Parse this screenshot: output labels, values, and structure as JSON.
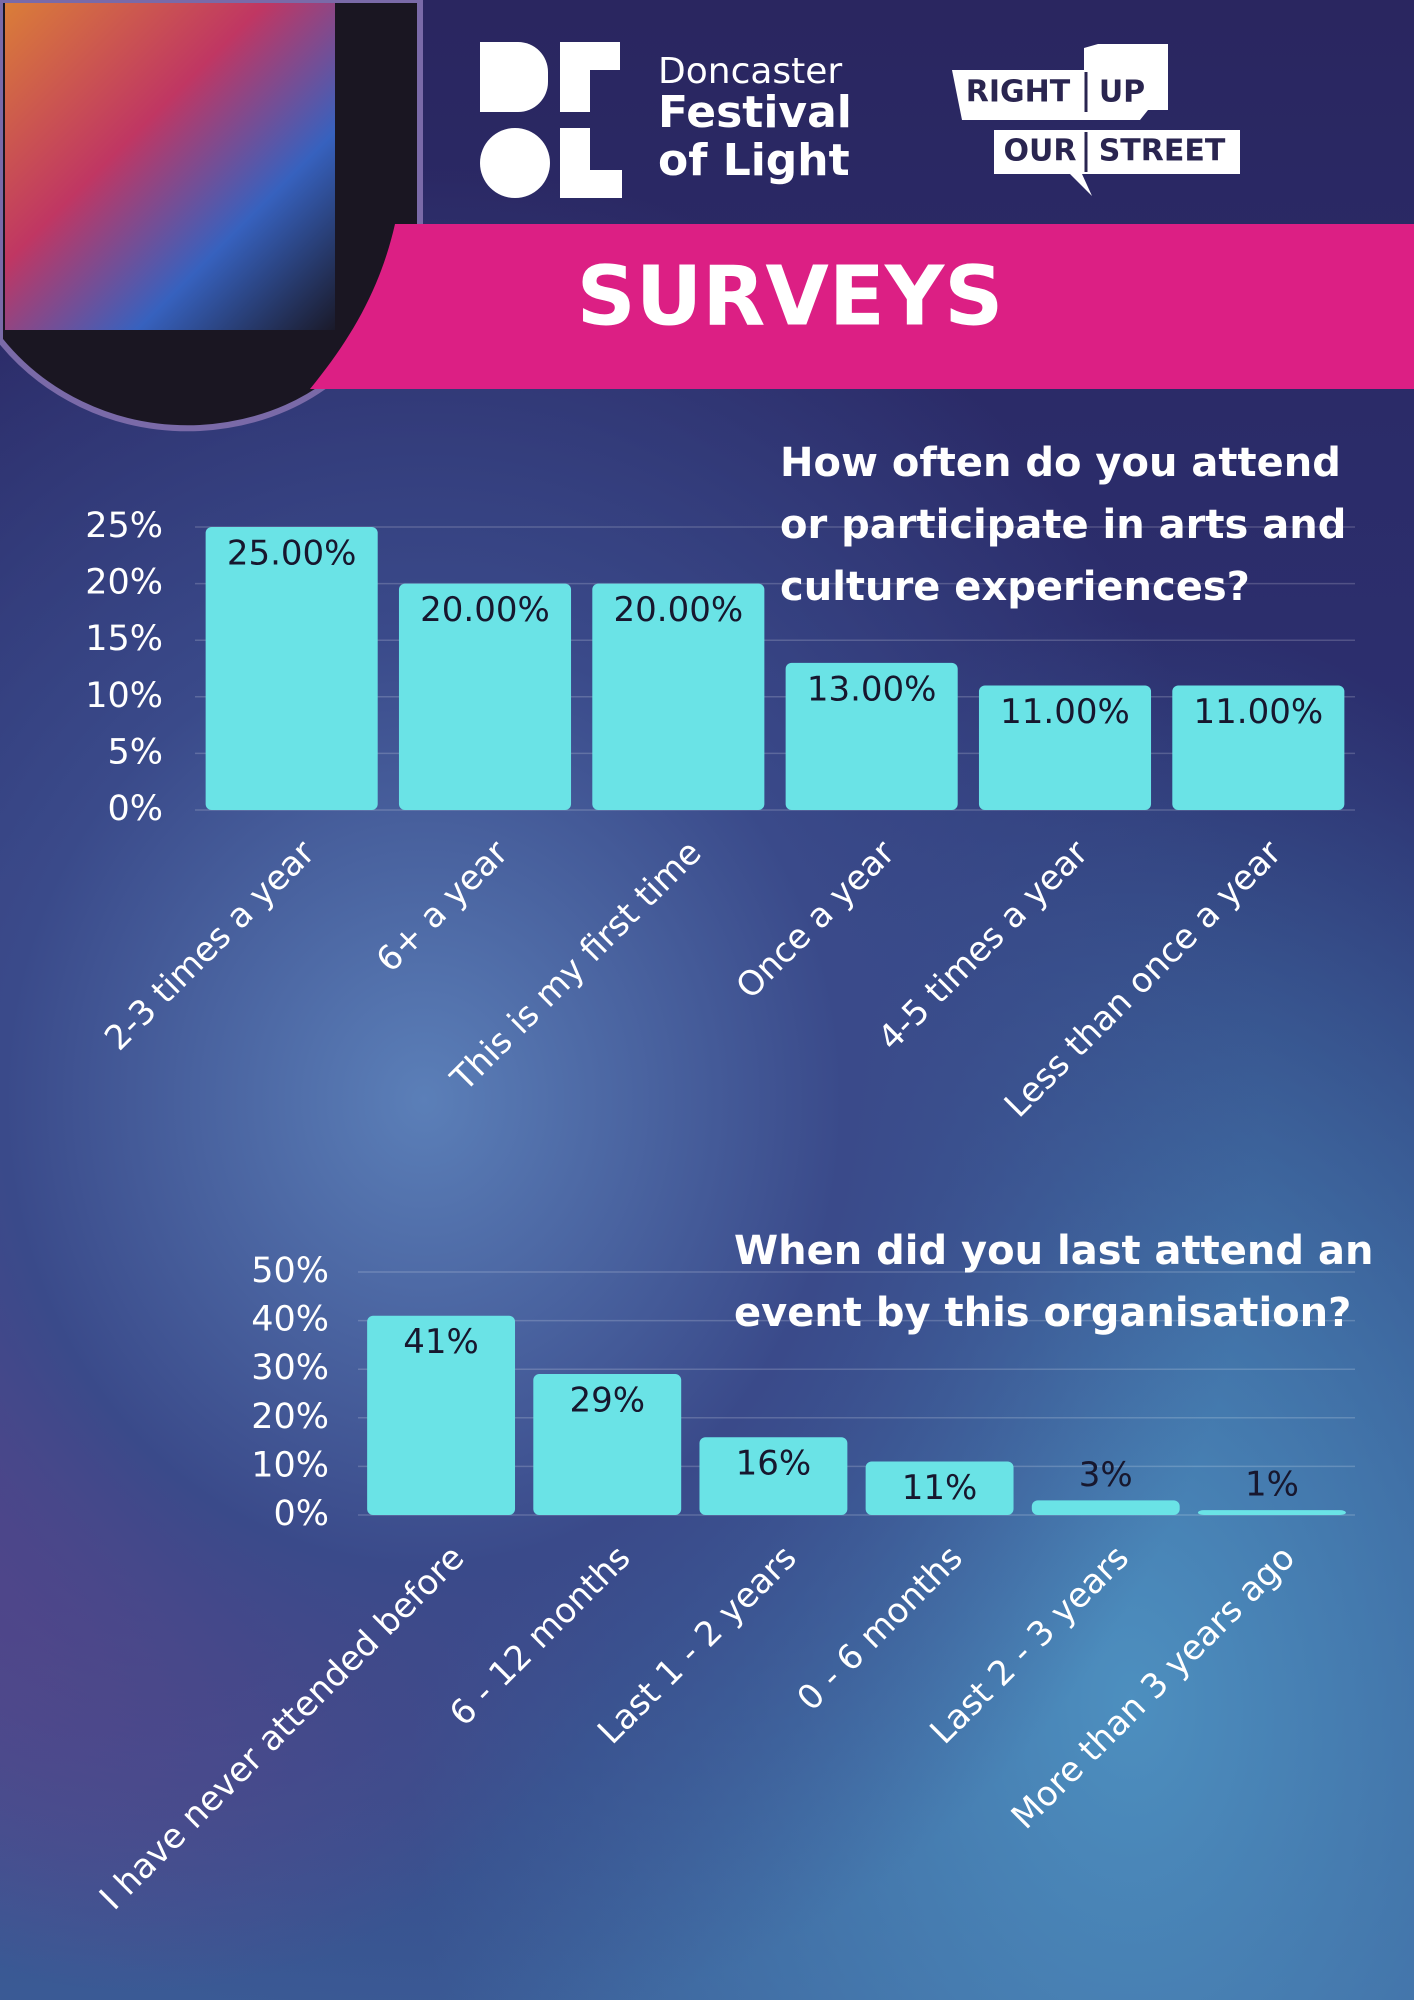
{
  "header": {
    "brand": [
      "Doncaster",
      "Festival",
      "of Light"
    ],
    "partner": [
      "RIGHT",
      "UP",
      "OUR",
      "STREET"
    ],
    "title": "SURVEYS"
  },
  "chart_data": [
    {
      "type": "bar",
      "title": "How often do you attend or participate in arts and culture experiences?",
      "categories": [
        "2-3 times a year",
        "6+ a year",
        "This is my first time",
        "Once a year",
        "4-5 times a year",
        "Less than once a year"
      ],
      "values": [
        25,
        20,
        20,
        13,
        11,
        11
      ],
      "value_labels": [
        "25.00%",
        "20.00%",
        "20.00%",
        "13.00%",
        "11.00%",
        "11.00%"
      ],
      "color": "#6ae3e6",
      "ylim": [
        0,
        25
      ],
      "yticks": [
        {
          "value": 0,
          "label": "0%"
        },
        {
          "value": 5,
          "label": "5%"
        },
        {
          "value": 10,
          "label": "10%"
        },
        {
          "value": 15,
          "label": "15%"
        },
        {
          "value": 20,
          "label": "20%"
        },
        {
          "value": 25,
          "label": "25%"
        }
      ],
      "grid": true
    },
    {
      "type": "bar",
      "title": "When did you last attend an event by this organisation?",
      "categories": [
        "I have never attended before",
        "6 - 12 months",
        "Last 1 - 2 years",
        "0 - 6 months",
        "Last 2 - 3 years",
        "More than 3 years ago"
      ],
      "values": [
        41,
        29,
        16,
        11,
        3,
        1
      ],
      "value_labels": [
        "41%",
        "29%",
        "16%",
        "11%",
        "3%",
        "1%"
      ],
      "color": "#6ae3e6",
      "ylim": [
        0,
        50
      ],
      "yticks": [
        {
          "value": 0,
          "label": "0%"
        },
        {
          "value": 10,
          "label": "10%"
        },
        {
          "value": 20,
          "label": "20%"
        },
        {
          "value": 30,
          "label": "30%"
        },
        {
          "value": 40,
          "label": "40%"
        },
        {
          "value": 50,
          "label": "50%"
        }
      ],
      "grid": true
    }
  ]
}
